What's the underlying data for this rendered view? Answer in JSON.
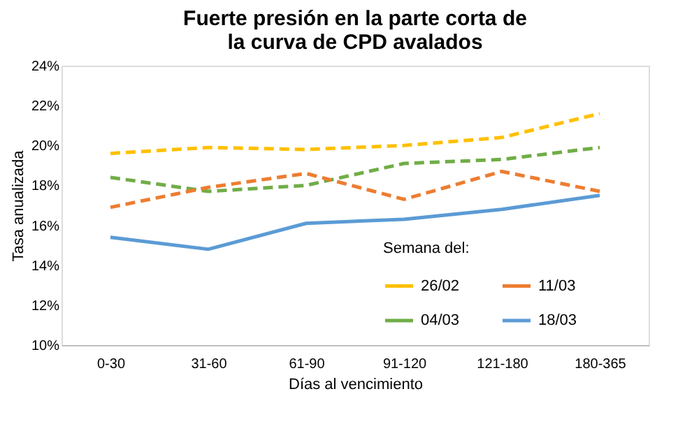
{
  "chart_data": {
    "type": "line",
    "title": "Fuerte presión en la parte corta de la curva de CPD avalados",
    "xlabel": "Días al vencimiento",
    "ylabel": "Tasa anualizada",
    "legend_title": "Semana del:",
    "legend": "bottom right",
    "grid": false,
    "marker": "none",
    "categories": [
      "0-30",
      "31-60",
      "61-90",
      "91-120",
      "121-180",
      "180-365"
    ],
    "ylim": [
      10,
      24
    ],
    "yticks": [
      {
        "value": 10,
        "label": "10%"
      },
      {
        "value": 12,
        "label": "12%"
      },
      {
        "value": 14,
        "label": "14%"
      },
      {
        "value": 16,
        "label": "16%"
      },
      {
        "value": 18,
        "label": "18%"
      },
      {
        "value": 20,
        "label": "20%"
      },
      {
        "value": 22,
        "label": "22%"
      },
      {
        "value": 24,
        "label": "24%"
      }
    ],
    "series": [
      {
        "name": "26/02",
        "color": "#ffc000",
        "line_style": "dashed",
        "values": [
          19.6,
          19.9,
          19.8,
          20.0,
          20.4,
          21.6
        ]
      },
      {
        "name": "04/03",
        "color": "#70ad47",
        "line_style": "dashed",
        "values": [
          18.4,
          17.7,
          18.0,
          19.1,
          19.3,
          19.9
        ]
      },
      {
        "name": "11/03",
        "color": "#ed7d31",
        "line_style": "dashed",
        "values": [
          16.9,
          17.9,
          18.6,
          17.3,
          18.7,
          17.7
        ]
      },
      {
        "name": "18/03",
        "color": "#5b9bd5",
        "line_style": "solid",
        "values": [
          15.4,
          14.8,
          16.1,
          16.3,
          16.8,
          17.5
        ]
      }
    ]
  }
}
